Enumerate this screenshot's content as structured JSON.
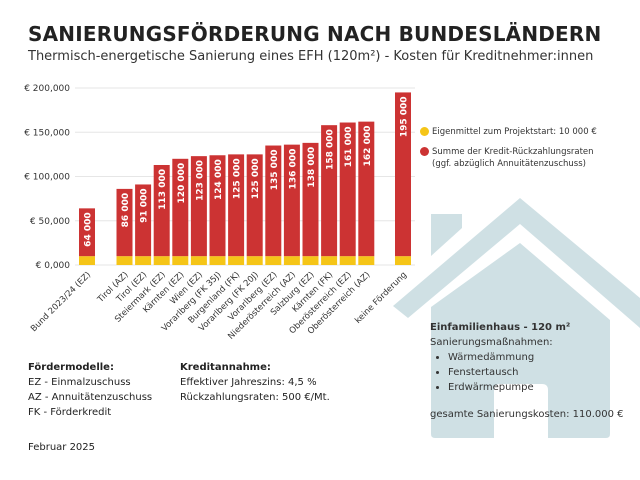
{
  "title": "SANIERUNGSFÖRDERUNG NACH BUNDESLÄNDERN",
  "subtitle": "Thermisch-energetische Sanierung eines EFH (120m²) - Kosten für Kreditnehmer:innen",
  "colors": {
    "eigenmittel": "#f5c518",
    "kredit": "#cc3333",
    "house": "#cfe0e4"
  },
  "chart_data": {
    "type": "bar",
    "stacked": true,
    "categories": [
      "Bund 2023/24 (EZ)",
      "Tirol (AZ)",
      "Tirol (EZ)",
      "Steiermark (EZ)",
      "Kärnten (EZ)",
      "Wien (EZ)",
      "Vorarlberg (FK 35J)",
      "Burgenland (FK)",
      "Vorarlberg (FK 20J)",
      "Vorarlberg (EZ)",
      "Niederösterreich (AZ)",
      "Salzburg (EZ)",
      "Kärnten (FK)",
      "Oberösterreich (EZ)",
      "Oberösterreich (AZ)",
      "keine Förderung"
    ],
    "totals": [
      64000,
      86000,
      91000,
      113000,
      120000,
      123000,
      124000,
      125000,
      125000,
      135000,
      136000,
      138000,
      158000,
      161000,
      162000,
      195000
    ],
    "data_labels": [
      "64 000",
      "86 000",
      "91 000",
      "113 000",
      "120 000",
      "123 000",
      "124 000",
      "125 000",
      "125 000",
      "135 000",
      "136 000",
      "138 000",
      "158 000",
      "161 000",
      "162 000",
      "195 000"
    ],
    "series": [
      {
        "name": "Eigenmittel zum Projektstart: 10 000 €",
        "values": [
          10000,
          10000,
          10000,
          10000,
          10000,
          10000,
          10000,
          10000,
          10000,
          10000,
          10000,
          10000,
          10000,
          10000,
          10000,
          10000
        ]
      },
      {
        "name": "Summe der Kredit-Rückzahlungsraten",
        "values": [
          54000,
          76000,
          81000,
          103000,
          110000,
          113000,
          114000,
          115000,
          115000,
          125000,
          126000,
          128000,
          148000,
          151000,
          152000,
          185000
        ]
      }
    ],
    "yticks": [
      0,
      50000,
      100000,
      150000,
      200000
    ],
    "ytick_labels": [
      "€ 0,000",
      "€ 50,000",
      "€ 100,000",
      "€ 150,000",
      "€ 200,000"
    ],
    "ylim": [
      0,
      200000
    ],
    "grid": true,
    "legend": "right"
  },
  "legend": {
    "eigenmittel": "Eigenmittel zum Projektstart: 10 000 €",
    "kredit_1": "Summe der Kredit-Rückzahlungsraten",
    "kredit_2": "(ggf. abzüglich Annuitätenzuschuss)"
  },
  "info": {
    "heading": "Einfamilienhaus - 120 m²",
    "measures_label": "Sanierungsmaßnahmen:",
    "measures": [
      "Wärmedämmung",
      "Fenstertausch",
      "Erdwärmepumpe"
    ],
    "total": "gesamte Sanierungskosten: 110.000 €"
  },
  "foerdermodelle": {
    "heading": "Fördermodelle:",
    "items": [
      "EZ - Einmalzuschuss",
      "AZ - Annuitätenzuschuss",
      "FK - Förderkredit"
    ]
  },
  "kredit": {
    "heading": "Kreditannahme:",
    "items": [
      "Effektiver Jahreszins: 4,5 %",
      "Rückzahlungsraten: 500 €/Mt."
    ]
  },
  "date": "Februar 2025"
}
